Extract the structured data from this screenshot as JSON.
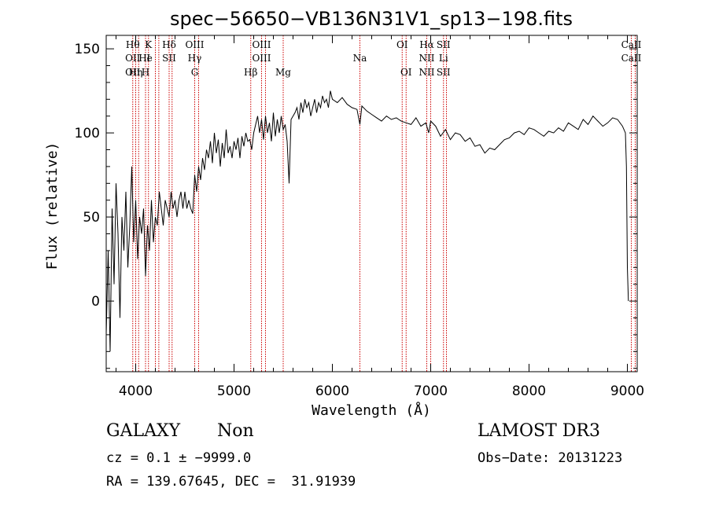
{
  "chart_data": {
    "type": "line",
    "title": "spec−56650−VB136N31V1_sp13−198.fits",
    "xlabel": "Wavelength (Å)",
    "ylabel": "Flux (relative)",
    "xlim": [
      3700,
      9100
    ],
    "ylim": [
      -42,
      158
    ],
    "x_ticks": [
      4000,
      5000,
      6000,
      7000,
      8000,
      9000
    ],
    "y_ticks": [
      0,
      50,
      100,
      150
    ],
    "line_color": "#000000",
    "marker_color": "#cc0000",
    "grid": false,
    "series": [
      {
        "x": [
          3700,
          3720,
          3740,
          3760,
          3780,
          3800,
          3820,
          3840,
          3860,
          3880,
          3900,
          3920,
          3940,
          3960,
          3980,
          4000,
          4020,
          4040,
          4060,
          4080,
          4100,
          4120,
          4140,
          4160,
          4180,
          4200,
          4220,
          4240,
          4260,
          4280,
          4300,
          4320,
          4340,
          4360,
          4380,
          4400,
          4420,
          4440,
          4460,
          4480,
          4500,
          4520,
          4540,
          4560,
          4580,
          4600,
          4620,
          4640,
          4660,
          4680,
          4700,
          4720,
          4740,
          4760,
          4780,
          4800,
          4820,
          4840,
          4860,
          4880,
          4900,
          4920,
          4940,
          4960,
          4980,
          5000,
          5020,
          5040,
          5060,
          5080,
          5100,
          5120,
          5140,
          5160,
          5180,
          5200,
          5220,
          5240,
          5260,
          5280,
          5300,
          5320,
          5340,
          5360,
          5380,
          5400,
          5420,
          5440,
          5460,
          5480,
          5500,
          5520,
          5540,
          5560,
          5580,
          5600,
          5620,
          5640,
          5660,
          5680,
          5700,
          5720,
          5740,
          5760,
          5780,
          5800,
          5820,
          5840,
          5860,
          5880,
          5900,
          5920,
          5940,
          5960,
          5980,
          6000,
          6050,
          6100,
          6150,
          6200,
          6250,
          6280,
          6300,
          6350,
          6400,
          6450,
          6500,
          6550,
          6600,
          6650,
          6700,
          6750,
          6800,
          6850,
          6900,
          6950,
          6980,
          7000,
          7050,
          7100,
          7150,
          7200,
          7250,
          7300,
          7350,
          7400,
          7450,
          7500,
          7550,
          7600,
          7650,
          7700,
          7750,
          7800,
          7850,
          7900,
          7950,
          8000,
          8050,
          8100,
          8150,
          8200,
          8250,
          8300,
          8350,
          8400,
          8450,
          8500,
          8550,
          8600,
          8650,
          8700,
          8750,
          8800,
          8850,
          8900,
          8950,
          8980,
          8990,
          9000,
          9010
        ],
        "y": [
          -20,
          30,
          -30,
          55,
          10,
          70,
          40,
          -10,
          50,
          30,
          65,
          20,
          45,
          80,
          35,
          60,
          25,
          50,
          40,
          55,
          15,
          45,
          30,
          60,
          35,
          50,
          45,
          65,
          55,
          45,
          60,
          55,
          50,
          65,
          55,
          60,
          50,
          60,
          65,
          55,
          65,
          55,
          60,
          55,
          52,
          75,
          65,
          80,
          72,
          85,
          78,
          90,
          85,
          95,
          82,
          100,
          88,
          96,
          80,
          94,
          85,
          102,
          88,
          92,
          85,
          95,
          90,
          97,
          85,
          98,
          92,
          100,
          95,
          96,
          90,
          100,
          105,
          110,
          100,
          108,
          96,
          110,
          100,
          106,
          95,
          112,
          98,
          108,
          100,
          110,
          102,
          105,
          95,
          70,
          108,
          110,
          112,
          115,
          108,
          118,
          112,
          120,
          115,
          118,
          110,
          115,
          120,
          112,
          118,
          115,
          122,
          118,
          120,
          115,
          125,
          120,
          118,
          121,
          117,
          115,
          114,
          105,
          116,
          113,
          111,
          109,
          107,
          110,
          108,
          109,
          107,
          106,
          105,
          109,
          104,
          106,
          100,
          107,
          104,
          98,
          102,
          96,
          100,
          99,
          95,
          97,
          92,
          93,
          88,
          91,
          90,
          93,
          96,
          97,
          100,
          101,
          99,
          103,
          102,
          100,
          98,
          101,
          100,
          103,
          101,
          106,
          104,
          102,
          108,
          105,
          110,
          107,
          104,
          106,
          109,
          108,
          104,
          100,
          80,
          20,
          0
        ]
      }
    ],
    "lines": [
      {
        "wavelength": 3970,
        "labels": [
          "Hθ",
          "OII",
          "OII"
        ]
      },
      {
        "wavelength": 4000,
        "labels": [
          "",
          "",
          "Hη"
        ]
      },
      {
        "wavelength": 4030,
        "labels": [
          "",
          "",
          ""
        ]
      },
      {
        "wavelength": 4100,
        "labels": [
          "",
          "He",
          "H"
        ]
      },
      {
        "wavelength": 4130,
        "labels": [
          "K",
          "I",
          ""
        ]
      },
      {
        "wavelength": 4200,
        "labels": [
          "",
          "",
          ""
        ]
      },
      {
        "wavelength": 4235,
        "labels": [
          "",
          "",
          ""
        ]
      },
      {
        "wavelength": 4340,
        "labels": [
          "Hδ",
          "SII",
          ""
        ]
      },
      {
        "wavelength": 4370,
        "labels": [
          "",
          "",
          ""
        ]
      },
      {
        "wavelength": 4600,
        "labels": [
          "OIII",
          "Hγ",
          "G"
        ]
      },
      {
        "wavelength": 4640,
        "labels": [
          "",
          "",
          ""
        ]
      },
      {
        "wavelength": 5170,
        "labels": [
          "",
          "",
          "Hβ"
        ]
      },
      {
        "wavelength": 5280,
        "labels": [
          "OIII",
          "OIII",
          ""
        ]
      },
      {
        "wavelength": 5320,
        "labels": [
          "",
          "",
          ""
        ]
      },
      {
        "wavelength": 5500,
        "labels": [
          "",
          "",
          "Mg"
        ]
      },
      {
        "wavelength": 6280,
        "labels": [
          "",
          "Na",
          ""
        ]
      },
      {
        "wavelength": 6710,
        "labels": [
          "OI",
          "",
          ""
        ]
      },
      {
        "wavelength": 6750,
        "labels": [
          "",
          "",
          "OI"
        ]
      },
      {
        "wavelength": 6960,
        "labels": [
          "Hα",
          "NII",
          "NII"
        ]
      },
      {
        "wavelength": 7000,
        "labels": [
          "",
          "",
          ""
        ]
      },
      {
        "wavelength": 7130,
        "labels": [
          "SII",
          "Li",
          "SII"
        ]
      },
      {
        "wavelength": 7160,
        "labels": [
          "",
          "",
          ""
        ]
      },
      {
        "wavelength": 9040,
        "labels": [
          "CaII",
          "CaII",
          ""
        ]
      },
      {
        "wavelength": 9080,
        "labels": [
          "",
          "",
          ""
        ]
      }
    ]
  },
  "info": {
    "object_class": "GALAXY",
    "subclass": "Non",
    "survey": "LAMOST DR3",
    "cz_line": "cz = 0.1 ± −9999.0",
    "obs_date": "Obs−Date: 20131223",
    "radec_line": "RA = 139.67645, DEC =  31.91939"
  }
}
